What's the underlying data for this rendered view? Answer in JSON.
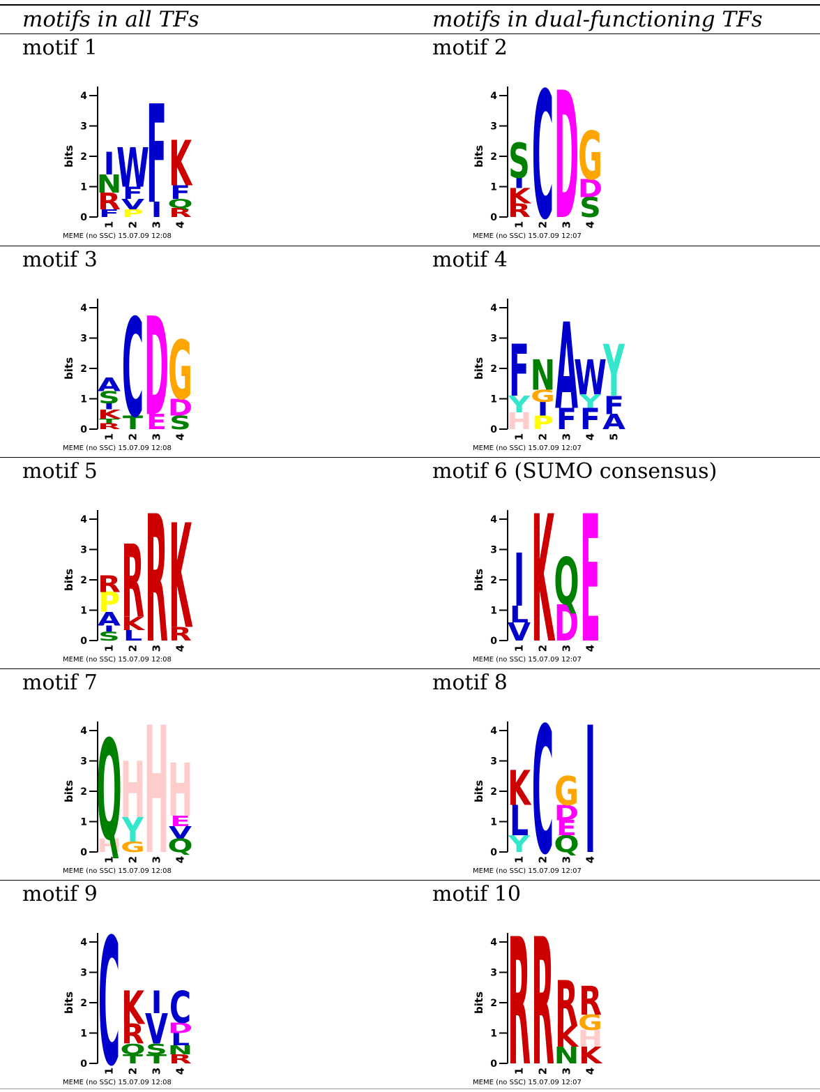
{
  "table": {
    "col_headers": [
      "motifs in all TFs",
      "motifs in dual-functioning TFs"
    ]
  },
  "colors": {
    "I": "#0000cc",
    "L": "#0000cc",
    "V": "#0000cc",
    "M": "#0000cc",
    "W": "#0000cc",
    "F": "#0000cc",
    "A": "#0000cc",
    "C": "#0000cc",
    "K": "#cc0000",
    "R": "#cc0000",
    "N": "#008000",
    "Q": "#008000",
    "S": "#008000",
    "T": "#008000",
    "D": "#ff00ff",
    "E": "#ff00ff",
    "G": "#ffa500",
    "P": "#ffff00",
    "H": "#ffcccc",
    "Y": "#33e6cc"
  },
  "chart_data": [
    {
      "type": "sequence_logo",
      "caption": "motif 1",
      "ylabel": "bits",
      "ylim": [
        0,
        4
      ],
      "yticks": [
        "0",
        "1",
        "2",
        "3",
        "4"
      ],
      "footer": "MEME (no SSC) 15.07.09 12:08",
      "positions": [
        {
          "label": "1",
          "stack": [
            [
              "F",
              0.25
            ],
            [
              "R",
              0.55
            ],
            [
              "N",
              0.6
            ],
            [
              "I",
              0.75
            ]
          ]
        },
        {
          "label": "2",
          "stack": [
            [
              "P",
              0.25
            ],
            [
              "V",
              0.35
            ],
            [
              "F",
              0.4
            ],
            [
              "W",
              1.3
            ]
          ]
        },
        {
          "label": "3",
          "stack": [
            [
              "I",
              0.5
            ],
            [
              "F",
              3.25
            ]
          ]
        },
        {
          "label": "4",
          "stack": [
            [
              "R",
              0.3
            ],
            [
              "Q",
              0.3
            ],
            [
              "F",
              0.45
            ],
            [
              "K",
              1.5
            ]
          ]
        }
      ]
    },
    {
      "type": "sequence_logo",
      "caption": "motif 2",
      "ylabel": "bits",
      "ylim": [
        0,
        4
      ],
      "yticks": [
        "0",
        "1",
        "2",
        "3",
        "4"
      ],
      "footer": "MEME (no SSC) 15.07.09 12:07",
      "positions": [
        {
          "label": "1",
          "stack": [
            [
              "R",
              0.45
            ],
            [
              "K",
              0.5
            ],
            [
              "I",
              0.35
            ],
            [
              "S",
              1.15
            ]
          ]
        },
        {
          "label": "2",
          "stack": [
            [
              "C",
              4.2
            ]
          ]
        },
        {
          "label": "3",
          "stack": [
            [
              "D",
              4.2
            ]
          ]
        },
        {
          "label": "4",
          "stack": [
            [
              "S",
              0.65
            ],
            [
              "D",
              0.6
            ],
            [
              "G",
              1.6
            ]
          ]
        }
      ]
    },
    {
      "type": "sequence_logo",
      "caption": "motif 3",
      "ylabel": "bits",
      "ylim": [
        0,
        4
      ],
      "yticks": [
        "0",
        "1",
        "2",
        "3",
        "4"
      ],
      "footer": "MEME (no SSC) 15.07.09 12:08",
      "positions": [
        {
          "label": "1",
          "stack": [
            [
              "R",
              0.2
            ],
            [
              "T",
              0.15
            ],
            [
              "K",
              0.3
            ],
            [
              "I",
              0.2
            ],
            [
              "S",
              0.4
            ],
            [
              "A",
              0.45
            ]
          ]
        },
        {
          "label": "2",
          "stack": [
            [
              "T",
              0.45
            ],
            [
              "C",
              3.25
            ]
          ]
        },
        {
          "label": "3",
          "stack": [
            [
              "E",
              0.5
            ],
            [
              "D",
              3.25
            ]
          ]
        },
        {
          "label": "4",
          "stack": [
            [
              "S",
              0.45
            ],
            [
              "D",
              0.55
            ],
            [
              "G",
              1.95
            ]
          ]
        }
      ]
    },
    {
      "type": "sequence_logo",
      "caption": "motif 4",
      "ylabel": "bits",
      "ylim": [
        0,
        4
      ],
      "yticks": [
        "0",
        "1",
        "2",
        "3",
        "4"
      ],
      "footer": "MEME (no SSC) 15.07.09 12:07",
      "positions": [
        {
          "label": "1",
          "stack": [
            [
              "H",
              0.55
            ],
            [
              "Y",
              0.55
            ],
            [
              "F",
              1.7
            ]
          ]
        },
        {
          "label": "2",
          "stack": [
            [
              "P",
              0.45
            ],
            [
              "I",
              0.45
            ],
            [
              "G",
              0.4
            ],
            [
              "N",
              1.0
            ]
          ]
        },
        {
          "label": "3",
          "stack": [
            [
              "F",
              0.7
            ],
            [
              "A",
              2.85
            ]
          ]
        },
        {
          "label": "4",
          "stack": [
            [
              "F",
              0.7
            ],
            [
              "Y",
              0.45
            ],
            [
              "W",
              1.15
            ]
          ]
        },
        {
          "label": "5",
          "stack": [
            [
              "A",
              0.5
            ],
            [
              "F",
              0.6
            ],
            [
              "Y",
              1.7
            ]
          ]
        }
      ]
    },
    {
      "type": "sequence_logo",
      "caption": "motif 5",
      "ylabel": "bits",
      "ylim": [
        0,
        4
      ],
      "yticks": [
        "0",
        "1",
        "2",
        "3",
        "4"
      ],
      "footer": "MEME (no SSC) 15.07.09 12:08",
      "positions": [
        {
          "label": "1",
          "stack": [
            [
              "S",
              0.3
            ],
            [
              "I",
              0.2
            ],
            [
              "A",
              0.45
            ],
            [
              "P",
              0.65
            ],
            [
              "R",
              0.55
            ]
          ]
        },
        {
          "label": "2",
          "stack": [
            [
              "L",
              0.35
            ],
            [
              "K",
              0.45
            ],
            [
              "R",
              2.4
            ]
          ]
        },
        {
          "label": "3",
          "stack": [
            [
              "R",
              4.2
            ]
          ]
        },
        {
          "label": "4",
          "stack": [
            [
              "R",
              0.45
            ],
            [
              "K",
              3.45
            ]
          ]
        }
      ]
    },
    {
      "type": "sequence_logo",
      "caption": "motif 6 (SUMO consensus)",
      "ylabel": "bits",
      "ylim": [
        0,
        4
      ],
      "yticks": [
        "0",
        "1",
        "2",
        "3",
        "4"
      ],
      "footer": "MEME (no SSC) 15.07.09 12:07",
      "positions": [
        {
          "label": "1",
          "stack": [
            [
              "V",
              0.6
            ],
            [
              "L",
              0.55
            ],
            [
              "I",
              1.75
            ]
          ]
        },
        {
          "label": "2",
          "stack": [
            [
              "K",
              4.2
            ]
          ]
        },
        {
          "label": "3",
          "stack": [
            [
              "D",
              1.2
            ],
            [
              "Q",
              1.55
            ]
          ]
        },
        {
          "label": "4",
          "stack": [
            [
              "E",
              4.2
            ]
          ]
        }
      ]
    },
    {
      "type": "sequence_logo",
      "caption": "motif 7",
      "ylabel": "bits",
      "ylim": [
        0,
        4
      ],
      "yticks": [
        "0",
        "1",
        "2",
        "3",
        "4"
      ],
      "footer": "MEME (no SSC) 15.07.09 12:08",
      "positions": [
        {
          "label": "1",
          "stack": [
            [
              "H",
              0.45
            ],
            [
              "Q",
              3.3
            ]
          ]
        },
        {
          "label": "2",
          "stack": [
            [
              "G",
              0.35
            ],
            [
              "Y",
              0.8
            ],
            [
              "H",
              1.85
            ]
          ]
        },
        {
          "label": "3",
          "stack": [
            [
              "H",
              4.2
            ]
          ]
        },
        {
          "label": "4",
          "stack": [
            [
              "Q",
              0.45
            ],
            [
              "V",
              0.4
            ],
            [
              "E",
              0.35
            ],
            [
              "H",
              1.75
            ]
          ]
        }
      ]
    },
    {
      "type": "sequence_logo",
      "caption": "motif 8",
      "ylabel": "bits",
      "ylim": [
        0,
        4
      ],
      "yticks": [
        "0",
        "1",
        "2",
        "3",
        "4"
      ],
      "footer": "MEME (no SSC) 15.07.09 12:07",
      "positions": [
        {
          "label": "1",
          "stack": [
            [
              "Y",
              0.55
            ],
            [
              "L",
              1.0
            ],
            [
              "K",
              1.15
            ]
          ]
        },
        {
          "label": "2",
          "stack": [
            [
              "C",
              4.2
            ]
          ]
        },
        {
          "label": "3",
          "stack": [
            [
              "Q",
              0.55
            ],
            [
              "E",
              0.5
            ],
            [
              "D",
              0.5
            ],
            [
              "G",
              0.95
            ]
          ]
        },
        {
          "label": "4",
          "stack": [
            [
              "I",
              4.2
            ]
          ]
        }
      ]
    },
    {
      "type": "sequence_logo",
      "caption": "motif 9",
      "ylabel": "bits",
      "ylim": [
        0,
        4
      ],
      "yticks": [
        "0",
        "1",
        "2",
        "3",
        "4"
      ],
      "footer": "MEME (no SSC) 15.07.09 12:08",
      "positions": [
        {
          "label": "1",
          "stack": [
            [
              "C",
              4.2
            ]
          ]
        },
        {
          "label": "2",
          "stack": [
            [
              "T",
              0.3
            ],
            [
              "Q",
              0.35
            ],
            [
              "R",
              0.65
            ],
            [
              "K",
              1.1
            ]
          ]
        },
        {
          "label": "3",
          "stack": [
            [
              "T",
              0.3
            ],
            [
              "S",
              0.35
            ],
            [
              "V",
              1.0
            ],
            [
              "I",
              0.75
            ]
          ]
        },
        {
          "label": "4",
          "stack": [
            [
              "R",
              0.3
            ],
            [
              "N",
              0.3
            ],
            [
              "L",
              0.4
            ],
            [
              "D",
              0.35
            ],
            [
              "C",
              1.05
            ]
          ]
        }
      ]
    },
    {
      "type": "sequence_logo",
      "caption": "motif 10",
      "ylabel": "bits",
      "ylim": [
        0,
        4
      ],
      "yticks": [
        "0",
        "1",
        "2",
        "3",
        "4"
      ],
      "footer": "MEME (no SSC) 15.07.09 12:07",
      "positions": [
        {
          "label": "1",
          "stack": [
            [
              "R",
              4.2
            ]
          ]
        },
        {
          "label": "2",
          "stack": [
            [
              "R",
              4.2
            ]
          ]
        },
        {
          "label": "3",
          "stack": [
            [
              "N",
              0.55
            ],
            [
              "K",
              0.7
            ],
            [
              "R",
              1.5
            ]
          ]
        },
        {
          "label": "4",
          "stack": [
            [
              "K",
              0.55
            ],
            [
              "H",
              0.55
            ],
            [
              "G",
              0.5
            ],
            [
              "R",
              0.95
            ]
          ]
        }
      ]
    }
  ]
}
